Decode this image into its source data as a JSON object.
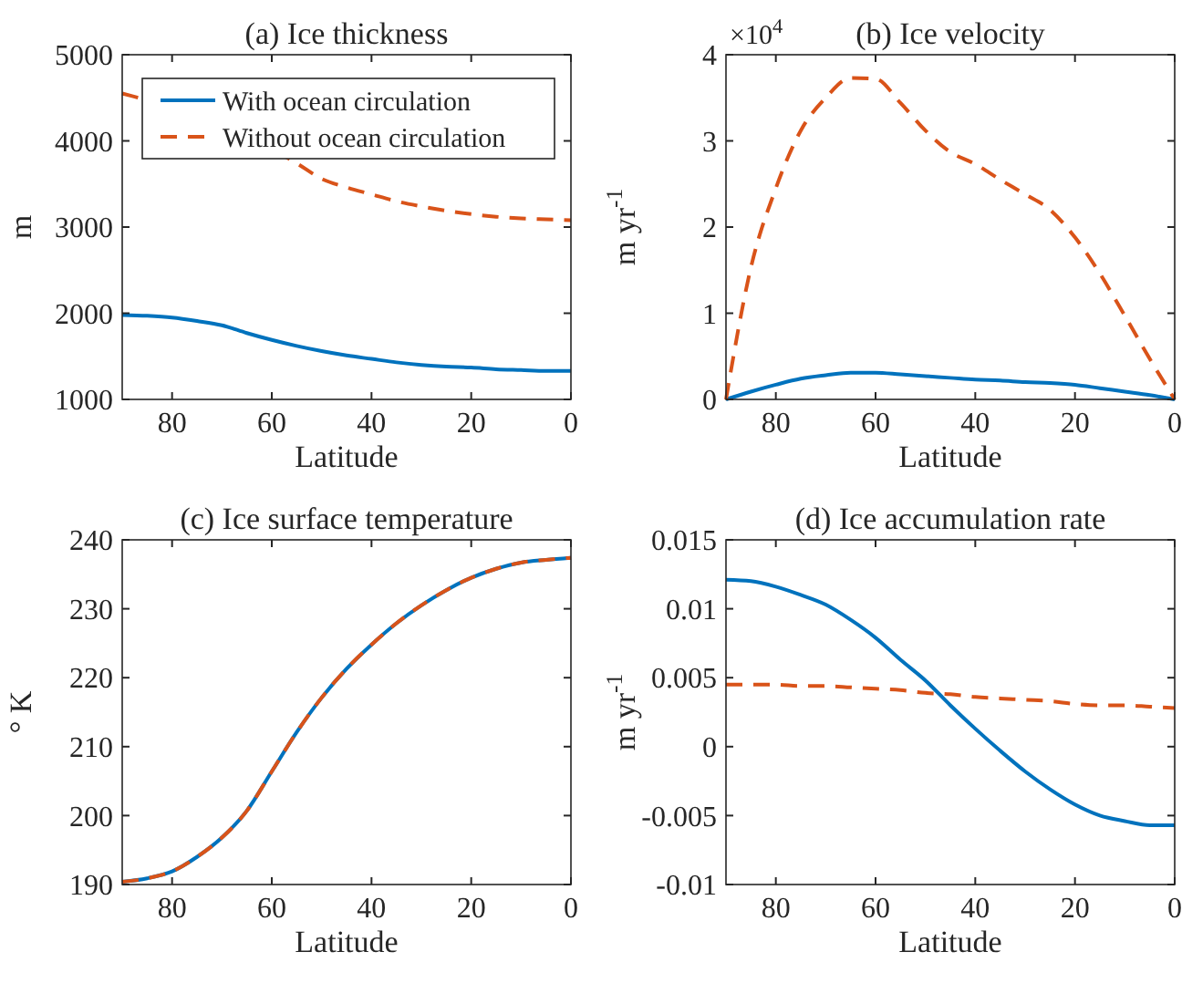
{
  "chart_data": [
    {
      "type": "line",
      "title": "(a) Ice thickness",
      "xlabel": "Latitude",
      "ylabel": "m",
      "x": [
        90,
        85,
        80,
        75,
        70,
        65,
        60,
        55,
        50,
        45,
        40,
        35,
        30,
        25,
        20,
        15,
        10,
        5,
        0
      ],
      "xlim": [
        90,
        0
      ],
      "xticks": [
        80,
        60,
        40,
        20,
        0
      ],
      "ylim": [
        1000,
        5000
      ],
      "yticks": [
        1000,
        2000,
        3000,
        4000,
        5000
      ],
      "grid": false,
      "legend": "top left",
      "series": [
        {
          "name": "With ocean circulation",
          "color": "#0072bd",
          "line_style": "solid",
          "values": [
            1980,
            1970,
            1950,
            1910,
            1860,
            1770,
            1690,
            1620,
            1560,
            1510,
            1470,
            1430,
            1400,
            1380,
            1370,
            1350,
            1340,
            1330,
            1330
          ]
        },
        {
          "name": "Without ocean circulation",
          "color": "#d95319",
          "line_style": "dashed",
          "x": [
            90,
            88,
            55,
            50,
            45,
            40,
            35,
            30,
            25,
            20,
            15,
            10,
            5,
            0
          ],
          "values": [
            4550,
            4520,
            3740,
            3560,
            3460,
            3380,
            3300,
            3240,
            3190,
            3150,
            3120,
            3100,
            3090,
            3080
          ]
        }
      ]
    },
    {
      "type": "line",
      "title": "(b) Ice velocity",
      "xlabel": "Latitude",
      "ylabel": "m yr$^{-1}$",
      "annotations": [
        "×10$^{4}$"
      ],
      "x": [
        90,
        85,
        80,
        75,
        70,
        65,
        60,
        55,
        50,
        45,
        40,
        35,
        30,
        25,
        20,
        15,
        10,
        5,
        0
      ],
      "xlim": [
        90,
        0
      ],
      "xticks": [
        80,
        60,
        40,
        20,
        0
      ],
      "ylim": [
        0,
        4
      ],
      "yticks": [
        0,
        1,
        2,
        3,
        4
      ],
      "grid": false,
      "series": [
        {
          "color": "#0072bd",
          "line_style": "solid",
          "values": [
            0,
            0.09,
            0.17,
            0.24,
            0.28,
            0.31,
            0.31,
            0.29,
            0.27,
            0.25,
            0.23,
            0.22,
            0.2,
            0.19,
            0.17,
            0.13,
            0.09,
            0.05,
            0
          ]
        },
        {
          "color": "#d95319",
          "line_style": "dashed",
          "values": [
            0,
            1.53,
            2.45,
            3.12,
            3.5,
            3.73,
            3.72,
            3.44,
            3.12,
            2.87,
            2.73,
            2.55,
            2.38,
            2.2,
            1.88,
            1.46,
            0.97,
            0.47,
            0
          ]
        }
      ]
    },
    {
      "type": "line",
      "title": "(c) Ice surface temperature",
      "xlabel": "Latitude",
      "ylabel": "° K",
      "x": [
        90,
        85,
        80,
        75,
        70,
        65,
        60,
        55,
        50,
        45,
        40,
        35,
        30,
        25,
        20,
        15,
        10,
        5,
        0
      ],
      "xlim": [
        90,
        0
      ],
      "xticks": [
        80,
        60,
        40,
        20,
        0
      ],
      "ylim": [
        190,
        240
      ],
      "yticks": [
        190,
        200,
        210,
        220,
        230,
        240
      ],
      "grid": false,
      "series": [
        {
          "color": "#0072bd",
          "line_style": "solid",
          "values": [
            190.4,
            190.9,
            191.9,
            194.0,
            196.8,
            200.7,
            206.4,
            212.1,
            217.1,
            221.3,
            224.8,
            227.9,
            230.5,
            232.7,
            234.5,
            235.8,
            236.7,
            237.1,
            237.4
          ]
        },
        {
          "color": "#d95319",
          "line_style": "dashed",
          "values": [
            190.4,
            190.9,
            191.9,
            194.0,
            196.8,
            200.7,
            206.4,
            212.1,
            217.1,
            221.3,
            224.8,
            227.9,
            230.5,
            232.7,
            234.5,
            235.8,
            236.7,
            237.1,
            237.4
          ]
        }
      ]
    },
    {
      "type": "line",
      "title": "(d) Ice accumulation rate",
      "xlabel": "Latitude",
      "ylabel": "m yr$^{-1}$",
      "x": [
        90,
        85,
        80,
        75,
        70,
        65,
        60,
        55,
        50,
        45,
        40,
        35,
        30,
        25,
        20,
        15,
        10,
        5,
        0
      ],
      "xlim": [
        90,
        0
      ],
      "xticks": [
        80,
        60,
        40,
        20,
        0
      ],
      "ylim": [
        -0.01,
        0.015
      ],
      "yticks": [
        -0.01,
        -0.005,
        0,
        0.005,
        0.01,
        0.015
      ],
      "grid": false,
      "series": [
        {
          "color": "#0072bd",
          "line_style": "solid",
          "values": [
            0.0121,
            0.012,
            0.0116,
            0.011,
            0.0103,
            0.0092,
            0.0079,
            0.0063,
            0.0048,
            0.003,
            0.0013,
            -0.0003,
            -0.0018,
            -0.0031,
            -0.0042,
            -0.005,
            -0.0054,
            -0.0057,
            -0.0057
          ]
        },
        {
          "color": "#d95319",
          "line_style": "dashed",
          "values": [
            0.0045,
            0.0045,
            0.0045,
            0.0044,
            0.0044,
            0.0043,
            0.0042,
            0.0041,
            0.0039,
            0.0038,
            0.0036,
            0.0035,
            0.0034,
            0.0033,
            0.0031,
            0.003,
            0.003,
            0.0029,
            0.0028
          ]
        }
      ]
    }
  ]
}
